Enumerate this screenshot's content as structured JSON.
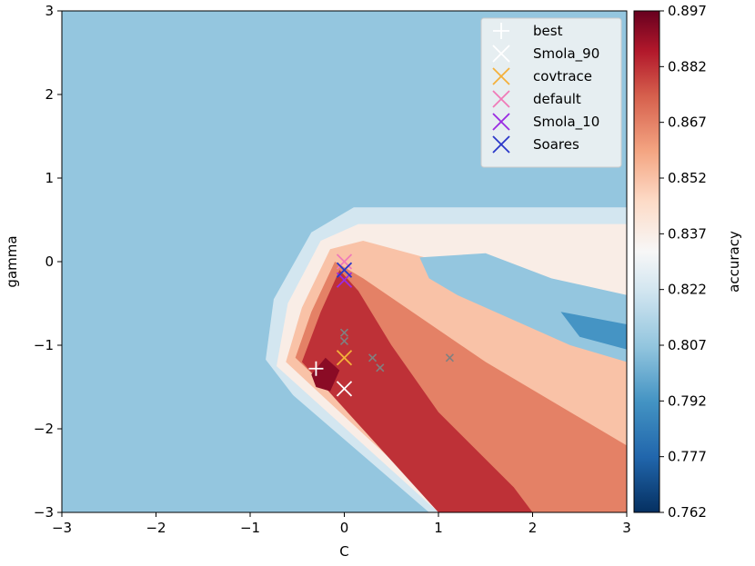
{
  "chart_data": {
    "type": "heatmap",
    "title": "",
    "xlabel": "C",
    "ylabel": "gamma",
    "xlim": [
      -3,
      3
    ],
    "ylim": [
      -3,
      3
    ],
    "x_ticks": [
      -3,
      -2,
      -1,
      0,
      1,
      2,
      3
    ],
    "y_ticks": [
      -3,
      -2,
      -1,
      0,
      1,
      2,
      3
    ],
    "x_tick_labels": [
      "−3",
      "−2",
      "−1",
      "0",
      "1",
      "2",
      "3"
    ],
    "y_tick_labels": [
      "−3",
      "−2",
      "−1",
      "0",
      "1",
      "2",
      "3"
    ],
    "background_value": 0.807,
    "colorbar": {
      "label": "accuracy",
      "min": 0.762,
      "max": 0.897,
      "ticks": [
        "0.762",
        "0.777",
        "0.792",
        "0.807",
        "0.822",
        "0.837",
        "0.852",
        "0.867",
        "0.882",
        "0.897"
      ],
      "low_color": "#053061",
      "high_color": "#67001f"
    },
    "contour_bands": [
      {
        "name": "band-0822",
        "value": 0.822,
        "points": [
          [
            -0.85,
            -1.3
          ],
          [
            -0.75,
            -0.45
          ],
          [
            -0.35,
            0.35
          ],
          [
            0.1,
            0.65
          ],
          [
            3,
            0.65
          ],
          [
            3,
            -3
          ],
          [
            0.9,
            -3
          ]
        ]
      },
      {
        "name": "band-0837",
        "value": 0.837,
        "points": [
          [
            -0.72,
            -1.25
          ],
          [
            -0.6,
            -0.5
          ],
          [
            -0.25,
            0.25
          ],
          [
            0.15,
            0.45
          ],
          [
            3,
            0.45
          ],
          [
            3,
            -3
          ],
          [
            1.0,
            -3
          ]
        ]
      },
      {
        "name": "band-0852",
        "value": 0.852,
        "points": [
          [
            -0.62,
            -1.2
          ],
          [
            -0.45,
            -0.55
          ],
          [
            -0.15,
            0.15
          ],
          [
            0.2,
            0.25
          ],
          [
            3,
            -0.6
          ],
          [
            3,
            -3
          ],
          [
            1.1,
            -3
          ]
        ]
      },
      {
        "name": "band-0867",
        "value": 0.867,
        "points": [
          [
            -0.52,
            -1.15
          ],
          [
            -0.35,
            -0.6
          ],
          [
            -0.1,
            0.0
          ],
          [
            0.2,
            -0.2
          ],
          [
            1.5,
            -1.2
          ],
          [
            3,
            -2.2
          ],
          [
            3,
            -3
          ],
          [
            1.2,
            -3
          ]
        ]
      },
      {
        "name": "band-0882",
        "value": 0.882,
        "points": [
          [
            -0.45,
            -1.2
          ],
          [
            -0.25,
            -0.6
          ],
          [
            -0.05,
            -0.1
          ],
          [
            0.15,
            -0.35
          ],
          [
            0.5,
            -1.0
          ],
          [
            1.0,
            -1.8
          ],
          [
            1.8,
            -2.7
          ],
          [
            2.0,
            -3
          ],
          [
            1.0,
            -3
          ]
        ]
      },
      {
        "name": "band-0892",
        "value": 0.892,
        "points": [
          [
            -0.35,
            -1.35
          ],
          [
            -0.2,
            -1.15
          ],
          [
            -0.05,
            -1.3
          ],
          [
            -0.15,
            -1.55
          ],
          [
            -0.3,
            -1.5
          ]
        ]
      }
    ],
    "blue_patches": [
      {
        "name": "blue-patch-upper",
        "value": 0.807,
        "points": [
          [
            0.8,
            0.05
          ],
          [
            1.5,
            0.1
          ],
          [
            2.2,
            -0.2
          ],
          [
            3,
            -0.4
          ],
          [
            3,
            -1.2
          ],
          [
            2.4,
            -1.0
          ],
          [
            1.8,
            -0.7
          ],
          [
            1.2,
            -0.4
          ],
          [
            0.9,
            -0.2
          ]
        ]
      },
      {
        "name": "blue-patch-deep",
        "value": 0.792,
        "points": [
          [
            2.3,
            -0.6
          ],
          [
            3,
            -0.75
          ],
          [
            3,
            -1.05
          ],
          [
            2.5,
            -0.9
          ]
        ]
      },
      {
        "name": "blue-stripe-lower",
        "value": 0.807,
        "points": [
          [
            -0.85,
            -1.15
          ],
          [
            -0.2,
            -2.1
          ],
          [
            0.8,
            -3
          ],
          [
            0.6,
            -3
          ],
          [
            -0.35,
            -2.15
          ],
          [
            -0.9,
            -1.35
          ]
        ]
      }
    ],
    "small_markers": [
      {
        "x": 0.0,
        "y": -0.85
      },
      {
        "x": 0.0,
        "y": -0.95
      },
      {
        "x": 0.3,
        "y": -1.15
      },
      {
        "x": 0.38,
        "y": -1.27
      },
      {
        "x": 1.12,
        "y": -1.15
      }
    ],
    "series": [
      {
        "name": "best",
        "marker": "plus",
        "color": "#ffffff",
        "x": -0.3,
        "y": -1.28
      },
      {
        "name": "Smola_90",
        "marker": "x",
        "color": "#ffffff",
        "x": 0.0,
        "y": -1.52
      },
      {
        "name": "covtrace",
        "marker": "x",
        "color": "#f4b03a",
        "x": 0.0,
        "y": -1.15
      },
      {
        "name": "default",
        "marker": "x",
        "color": "#f07ab8",
        "x": 0.0,
        "y": 0.0
      },
      {
        "name": "Smola_10",
        "marker": "x",
        "color": "#9a2be2",
        "x": 0.0,
        "y": -0.22
      },
      {
        "name": "Soares",
        "marker": "x",
        "color": "#2a37c8",
        "x": 0.0,
        "y": -0.1
      }
    ],
    "legend_position": "top-right"
  }
}
